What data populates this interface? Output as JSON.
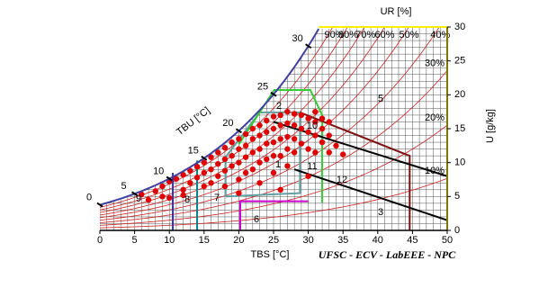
{
  "chart_data": {
    "type": "psychrometric",
    "x_label": "TBS [°C]",
    "y_label": "U [g/kg]",
    "rh_label": "UR [%]",
    "wet_bulb_label": "TBU [°C]",
    "footer": "UFSC - ECV - LabEEE - NPC",
    "xlim": [
      0,
      50
    ],
    "ylim": [
      0,
      30
    ],
    "xticks": [
      0,
      5,
      10,
      15,
      20,
      25,
      30,
      35,
      40,
      45,
      50
    ],
    "yticks": [
      0,
      5,
      10,
      15,
      20,
      25,
      30
    ],
    "minor_step": 1,
    "grid": true,
    "grid_color": "#555555",
    "saturation_color": "#4040a0",
    "top_color": "#ffee00",
    "rh_color": "#cc2020",
    "rh_curves": [
      {
        "value": 10,
        "label": "10%"
      },
      {
        "value": 20,
        "label": "20%"
      },
      {
        "value": 30,
        "label": "30%"
      },
      {
        "value": 40,
        "label": "40%"
      },
      {
        "value": 50,
        "label": "50%"
      },
      {
        "value": 60,
        "label": "60%"
      },
      {
        "value": 70,
        "label": "70%"
      },
      {
        "value": 80,
        "label": "80%"
      },
      {
        "value": 90,
        "label": "90%"
      }
    ],
    "wet_bulb_ticks": [
      0,
      5,
      10,
      15,
      20,
      25,
      30
    ],
    "boundaries": [
      {
        "color": "#5f9ea0",
        "points": [
          [
            18.1,
            5
          ],
          [
            18.1,
            10.8
          ],
          [
            23,
            17.4
          ],
          [
            28.8,
            17.4
          ],
          [
            28.8,
            5.5
          ],
          [
            18.1,
            5
          ]
        ]
      },
      {
        "color": "#33cc33",
        "points": [
          [
            20,
            12.7
          ],
          [
            25.1,
            20.7
          ],
          [
            30.3,
            20.7
          ],
          [
            32,
            17
          ],
          [
            32,
            4.1
          ]
        ]
      },
      {
        "color": "#7b1010",
        "points": [
          [
            28.8,
            17.4
          ],
          [
            44.6,
            11
          ],
          [
            44.6,
            0
          ]
        ]
      },
      {
        "color": "#3030c0",
        "points": [
          [
            10.5,
            0
          ],
          [
            10.5,
            8.5
          ]
        ]
      },
      {
        "color": "#008080",
        "points": [
          [
            14,
            0
          ],
          [
            14,
            10.3
          ]
        ]
      },
      {
        "color": "#cc00cc",
        "points": [
          [
            20.2,
            0
          ],
          [
            20.2,
            4.3
          ],
          [
            30,
            4.3
          ]
        ]
      },
      {
        "color": "#000000",
        "points": [
          [
            25,
            16
          ],
          [
            50,
            8
          ]
        ]
      },
      {
        "color": "#000000",
        "points": [
          [
            28,
            9
          ],
          [
            50,
            1.5
          ]
        ]
      }
    ],
    "zone_labels": [
      "1",
      "2",
      "3",
      "5",
      "6",
      "7",
      "8",
      "9",
      "10",
      "11",
      "12"
    ],
    "points_color": "#e00000",
    "x": [
      6,
      8,
      9,
      10,
      11,
      12,
      12,
      13,
      13,
      14,
      14,
      15,
      15,
      15,
      16,
      16,
      16,
      17,
      17,
      17,
      18,
      18,
      18,
      18,
      19,
      19,
      19,
      20,
      20,
      20,
      20,
      21,
      21,
      21,
      21,
      22,
      22,
      22,
      22,
      23,
      23,
      23,
      23,
      23,
      24,
      24,
      24,
      24,
      25,
      25,
      25,
      25,
      25,
      26,
      26,
      26,
      26,
      27,
      27,
      27,
      27,
      27,
      28,
      28,
      28,
      28,
      29,
      29,
      29,
      30,
      30,
      30,
      31,
      31,
      31,
      32,
      32,
      33,
      33,
      34,
      35,
      7,
      9,
      10,
      12,
      20,
      26,
      30,
      31,
      32,
      33
    ],
    "y": [
      5.3,
      5.8,
      6.5,
      7.2,
      7.6,
      8.2,
      6,
      8.8,
      7,
      9.4,
      7.8,
      10,
      8.5,
      6.5,
      10.8,
      9,
      7,
      11.5,
      9.8,
      8,
      12.2,
      10.5,
      8.8,
      6.5,
      13,
      11,
      9.5,
      13.5,
      12,
      10,
      7.5,
      14.2,
      12.5,
      10.8,
      8.5,
      15,
      13.5,
      11.5,
      9,
      15.5,
      14,
      12,
      10,
      7,
      16.2,
      14.5,
      12.8,
      10.5,
      16.8,
      15,
      13,
      11,
      8.5,
      17,
      15.5,
      13.5,
      11,
      17.5,
      15.8,
      13.8,
      12,
      9.5,
      17.2,
      15.5,
      13.5,
      11.5,
      17,
      15,
      12.8,
      16.5,
      14.5,
      12,
      16,
      14,
      11.5,
      15,
      13,
      14,
      11.5,
      12.5,
      11.2,
      4.5,
      5,
      4.8,
      5.2,
      5.5,
      6,
      8,
      17.5,
      16.5,
      16
    ]
  }
}
